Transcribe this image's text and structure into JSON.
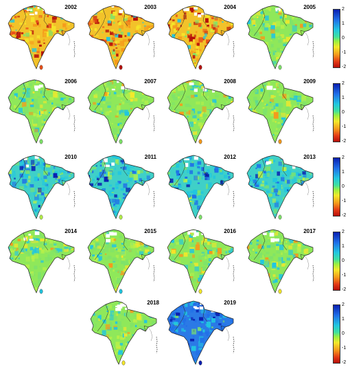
{
  "colors": {
    "high": "#0a1fb0",
    "mid_high": "#21c6e0",
    "mid": "#7fe36a",
    "mid_low": "#f5e82a",
    "low": "#b70f0a",
    "background": "#ffffff",
    "border": "#222222"
  },
  "colorbar": {
    "ticks": [
      "2",
      "1",
      "0",
      "-1",
      "-2"
    ],
    "max": 2,
    "min": -2
  },
  "panels": [
    {
      "year": "2002",
      "tone": "dry"
    },
    {
      "year": "2003",
      "tone": "dry"
    },
    {
      "year": "2004",
      "tone": "dry"
    },
    {
      "year": "2005",
      "tone": "neutral"
    },
    {
      "year": "2006",
      "tone": "neutral"
    },
    {
      "year": "2007",
      "tone": "neutral"
    },
    {
      "year": "2008",
      "tone": "neutral"
    },
    {
      "year": "2009",
      "tone": "neutral"
    },
    {
      "year": "2010",
      "tone": "wet"
    },
    {
      "year": "2011",
      "tone": "wet"
    },
    {
      "year": "2012",
      "tone": "wet"
    },
    {
      "year": "2013",
      "tone": "wet"
    },
    {
      "year": "2014",
      "tone": "neutral"
    },
    {
      "year": "2015",
      "tone": "neutral"
    },
    {
      "year": "2016",
      "tone": "neutral"
    },
    {
      "year": "2017",
      "tone": "neutral"
    },
    {
      "year": "2018",
      "tone": "neutral"
    },
    {
      "year": "2019",
      "tone": "very-wet"
    }
  ]
}
